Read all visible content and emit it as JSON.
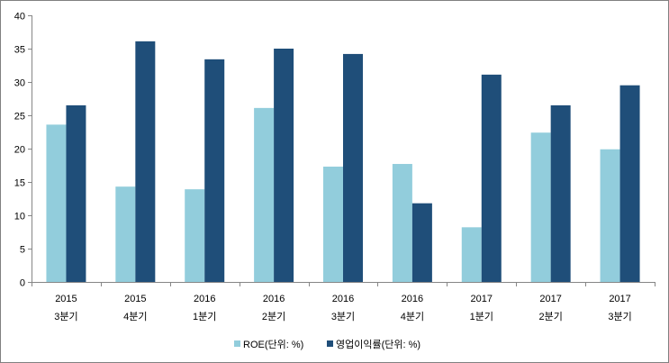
{
  "chart_data": {
    "type": "bar",
    "title": "",
    "xlabel": "",
    "ylabel": "",
    "ylim": [
      0,
      40
    ],
    "yticks": [
      0,
      5,
      10,
      15,
      20,
      25,
      30,
      35,
      40
    ],
    "grid": false,
    "legend_position": "bottom",
    "categories": [
      [
        "2015",
        "3분기"
      ],
      [
        "2015",
        "4분기"
      ],
      [
        "2016",
        "1분기"
      ],
      [
        "2016",
        "2분기"
      ],
      [
        "2016",
        "3분기"
      ],
      [
        "2016",
        "4분기"
      ],
      [
        "2017",
        "1분기"
      ],
      [
        "2017",
        "2분기"
      ],
      [
        "2017",
        "3분기"
      ]
    ],
    "series": [
      {
        "name": "ROE(단위: %)",
        "color": "#92CDDC",
        "values": [
          23.6,
          14.3,
          13.9,
          26.1,
          17.3,
          17.7,
          8.2,
          22.4,
          19.9
        ]
      },
      {
        "name": "영업이익률(단위: %)",
        "color": "#1F4E79",
        "values": [
          26.5,
          36.1,
          33.4,
          35.0,
          34.2,
          11.8,
          31.1,
          26.5,
          29.5
        ]
      }
    ]
  }
}
